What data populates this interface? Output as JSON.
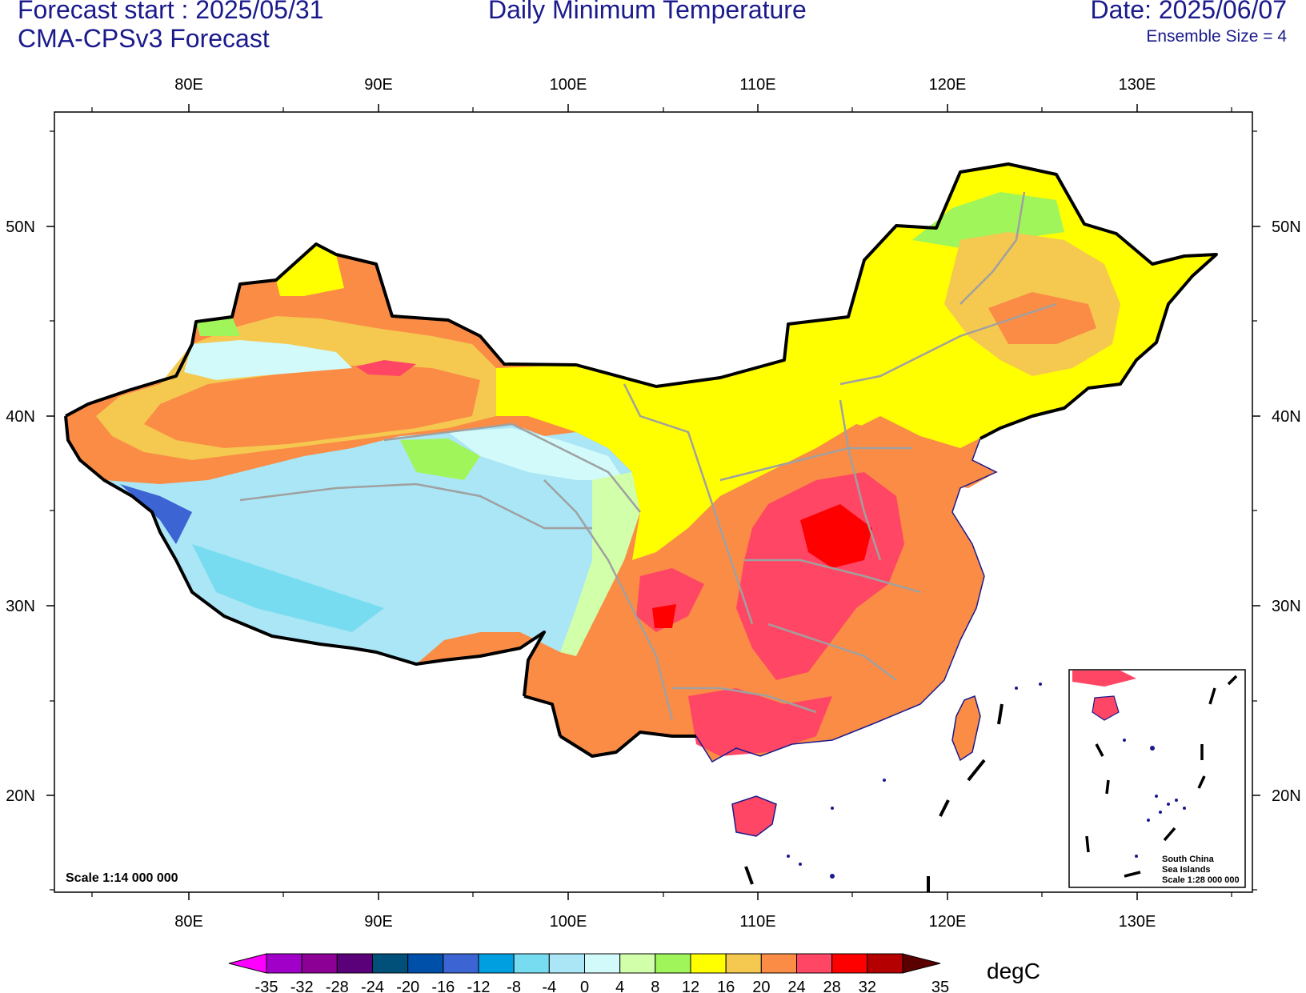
{
  "header": {
    "forecast_start": "Forecast start : 2025/05/31",
    "model": "CMA-CPSv3 Forecast",
    "title": "Daily Minimum Temperature",
    "date": "Date: 2025/06/07",
    "ensemble": "Ensemble Size = 4"
  },
  "axes": {
    "lon_labels": [
      "80E",
      "90E",
      "100E",
      "110E",
      "120E",
      "130E"
    ],
    "lat_labels": [
      "50N",
      "40N",
      "30N",
      "20N"
    ]
  },
  "map": {
    "scale_main": "Scale 1:14 000 000",
    "inset_title": "South China",
    "inset_title2": "Sea Islands",
    "inset_scale": "Scale 1:28 000 000"
  },
  "colorbar": {
    "unit": "degC",
    "labels": [
      "-35",
      "-32",
      "-28",
      "-24",
      "-20",
      "-16",
      "-12",
      "-8",
      "-4",
      "0",
      "4",
      "8",
      "12",
      "16",
      "20",
      "24",
      "28",
      "32",
      "35"
    ],
    "colors": [
      "#ff00ff",
      "#a000c8",
      "#8c0096",
      "#5a0078",
      "#00507a",
      "#0050aa",
      "#3c64d2",
      "#00a0e0",
      "#78dcf0",
      "#aae6f5",
      "#d2fafa",
      "#d2ffaa",
      "#a0f55a",
      "#ffff00",
      "#f5c850",
      "#fa8c46",
      "#ff4664",
      "#ff0000",
      "#b40000",
      "#5a0000"
    ]
  }
}
